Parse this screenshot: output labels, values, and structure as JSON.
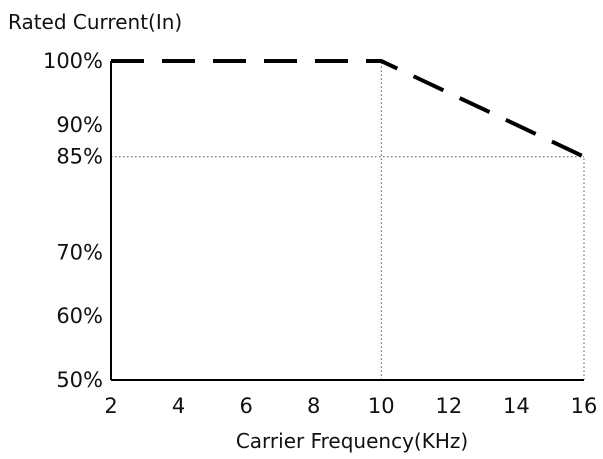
{
  "chart_data": {
    "type": "line",
    "title": "",
    "ylabel": "Rated Current(In)",
    "xlabel": "Carrier Frequency(KHz)",
    "x_ticks": [
      2,
      4,
      6,
      8,
      10,
      12,
      14,
      16
    ],
    "x_tick_labels": [
      "2",
      "4",
      "6",
      "8",
      "10",
      "12",
      "14",
      "16"
    ],
    "y_ticks": [
      100,
      90,
      85,
      70,
      60,
      50
    ],
    "y_tick_labels": [
      "100%",
      "90%",
      "85%",
      "70%",
      "60%",
      "50%"
    ],
    "xlim": [
      2,
      16
    ],
    "ylim": [
      50,
      100
    ],
    "series": [
      {
        "style": "dashed",
        "color": "#000000",
        "points": [
          {
            "x": 2,
            "y": 100
          },
          {
            "x": 10,
            "y": 100
          },
          {
            "x": 16,
            "y": 85
          }
        ]
      }
    ],
    "reference_lines": [
      {
        "orientation": "vertical",
        "x": 10,
        "from_y": 50,
        "to_y": 100
      },
      {
        "orientation": "horizontal",
        "y": 85,
        "from_x": 2,
        "to_x": 16
      },
      {
        "orientation": "vertical",
        "x": 16,
        "from_y": 50,
        "to_y": 85
      }
    ],
    "colors": {
      "axis": "#000000",
      "series": "#000000",
      "reference": "#555555",
      "text": "#111111"
    }
  }
}
